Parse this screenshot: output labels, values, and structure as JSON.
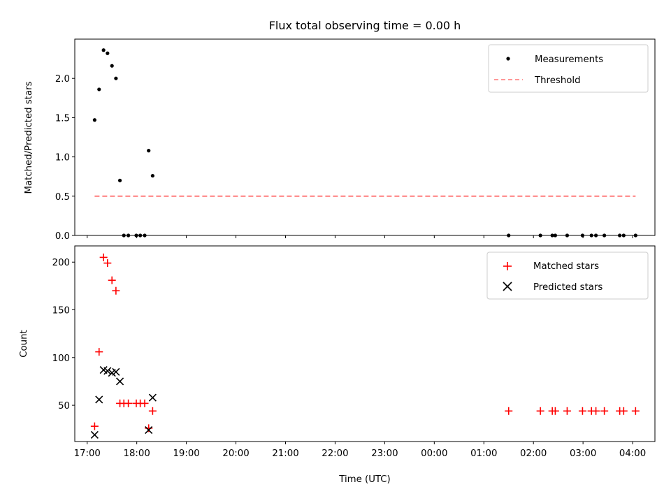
{
  "chart_data": [
    {
      "type": "scatter",
      "title": "Flux total observing time = 0.00 h",
      "ylabel": "Matched/Predicted stars",
      "xlabel": "",
      "xlim": [
        16.75,
        28.45
      ],
      "ylim": [
        0,
        2.5
      ],
      "yticks": [
        0.0,
        0.5,
        1.0,
        1.5,
        2.0
      ],
      "ytick_labels": [
        "0.0",
        "0.5",
        "1.0",
        "1.5",
        "2.0"
      ],
      "legend_position": "top-right",
      "legend": [
        "Measurements",
        "Threshold"
      ],
      "series": [
        {
          "name": "Measurements",
          "marker": "dot",
          "color": "#000000",
          "x": [
            17.15,
            17.24,
            17.33,
            17.41,
            17.5,
            17.58,
            17.66,
            17.74,
            17.83,
            17.99,
            18.07,
            18.16,
            18.24,
            18.32,
            25.5,
            26.14,
            26.38,
            26.44,
            26.68,
            26.99,
            27.17,
            27.26,
            27.43,
            27.74,
            27.82,
            28.06
          ],
          "y": [
            1.47,
            1.86,
            2.36,
            2.32,
            2.16,
            2.0,
            0.7,
            0.0,
            0.0,
            0.0,
            0.0,
            0.0,
            1.08,
            0.76,
            0.0,
            0.0,
            0.0,
            0.0,
            0.0,
            0.0,
            0.0,
            0.0,
            0.0,
            0.0,
            0.0,
            0.0
          ]
        },
        {
          "name": "Threshold",
          "style": "dashed",
          "color": "#ff7777",
          "x": [
            17.15,
            28.06
          ],
          "y": [
            0.5,
            0.5
          ]
        }
      ]
    },
    {
      "type": "scatter",
      "title": "",
      "ylabel": "Count",
      "xlabel": "Time (UTC)",
      "xlim": [
        16.75,
        28.45
      ],
      "ylim": [
        12,
        217
      ],
      "yticks": [
        50,
        100,
        150,
        200
      ],
      "ytick_labels": [
        "50",
        "100",
        "150",
        "200"
      ],
      "xticks": [
        17,
        18,
        19,
        20,
        21,
        22,
        23,
        24,
        25,
        26,
        27,
        28
      ],
      "xtick_labels": [
        "17:00",
        "18:00",
        "19:00",
        "20:00",
        "21:00",
        "22:00",
        "23:00",
        "00:00",
        "01:00",
        "02:00",
        "03:00",
        "04:00"
      ],
      "legend_position": "top-right",
      "legend": [
        "Matched stars",
        "Predicted stars"
      ],
      "series": [
        {
          "name": "Matched stars",
          "marker": "plus",
          "color": "#ff0000",
          "x": [
            17.15,
            17.24,
            17.33,
            17.41,
            17.5,
            17.58,
            17.66,
            17.74,
            17.83,
            17.99,
            18.07,
            18.16,
            18.24,
            18.32,
            25.5,
            26.14,
            26.38,
            26.44,
            26.68,
            26.99,
            27.17,
            27.26,
            27.43,
            27.74,
            27.82,
            28.06
          ],
          "y": [
            28,
            106,
            205,
            199,
            181,
            170,
            52,
            52,
            52,
            52,
            52,
            52,
            26,
            44,
            44,
            44,
            44,
            44,
            44,
            44,
            44,
            44,
            44,
            44,
            44,
            44
          ]
        },
        {
          "name": "Predicted stars",
          "marker": "x",
          "color": "#000000",
          "x": [
            17.15,
            17.24,
            17.33,
            17.41,
            17.5,
            17.58,
            17.66,
            18.24,
            18.32
          ],
          "y": [
            19,
            56,
            87,
            86,
            84,
            85,
            75,
            24,
            58
          ]
        }
      ]
    }
  ]
}
